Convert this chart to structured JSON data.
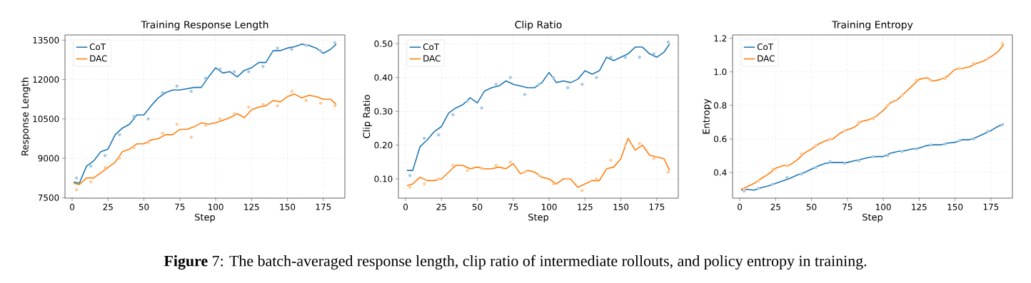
{
  "chart_data": [
    {
      "type": "line",
      "title": "Training Response Length",
      "xlabel": "Step",
      "ylabel": "Response Length",
      "xlim": [
        -5,
        190
      ],
      "ylim": [
        7480,
        13700
      ],
      "xticks": [
        0,
        25,
        50,
        75,
        100,
        125,
        150,
        175
      ],
      "yticks": [
        7500,
        9000,
        10500,
        12000,
        13500
      ],
      "grid": true,
      "legend": "top left",
      "annotations": [
        "**Figure** 7: The batch-averaged response length, clip ratio of intermediate rollouts, and policy entropy in training."
      ],
      "series": [
        {
          "type": "scatter",
          "marker": "circle",
          "color": "#a5c8e1",
          "x": [
            3,
            13,
            23,
            33,
            43,
            53,
            63,
            73,
            83,
            93,
            103,
            113,
            123,
            133,
            143,
            153,
            163,
            173,
            183
          ],
          "values": [
            8250,
            8700,
            9100,
            9900,
            10600,
            10500,
            11500,
            11750,
            11550,
            12050,
            12400,
            12300,
            12300,
            12500,
            13200,
            13150,
            13300,
            13100,
            13400
          ]
        },
        {
          "type": "scatter",
          "marker": "circle",
          "color": "#ffc999",
          "x": [
            3,
            13,
            23,
            33,
            43,
            53,
            63,
            73,
            83,
            93,
            103,
            113,
            123,
            133,
            143,
            153,
            163,
            173,
            183
          ],
          "values": [
            7800,
            8100,
            8650,
            9000,
            9400,
            9600,
            9950,
            10300,
            9800,
            10250,
            10500,
            10700,
            10950,
            11050,
            11000,
            11550,
            11200,
            11100,
            11000
          ]
        },
        {
          "type": "line",
          "marker": "none",
          "name": "CoT",
          "color": "#1f77b4",
          "x": [
            1,
            5,
            10,
            15,
            20,
            25,
            30,
            35,
            40,
            45,
            50,
            55,
            60,
            65,
            70,
            75,
            80,
            85,
            90,
            95,
            100,
            105,
            110,
            115,
            120,
            125,
            130,
            135,
            140,
            145,
            150,
            155,
            160,
            165,
            170,
            175,
            180,
            184
          ],
          "values": [
            8100,
            8050,
            8700,
            8900,
            9250,
            9350,
            9900,
            10150,
            10300,
            10650,
            10650,
            11000,
            11300,
            11500,
            11600,
            11600,
            11650,
            11700,
            11700,
            12100,
            12450,
            12250,
            12300,
            12100,
            12350,
            12450,
            12650,
            12650,
            13100,
            13100,
            13200,
            13250,
            13350,
            13300,
            13200,
            13000,
            13150,
            13350
          ]
        },
        {
          "type": "line",
          "marker": "none",
          "name": "DAC",
          "color": "#ff7f0e",
          "x": [
            1,
            5,
            10,
            15,
            20,
            25,
            30,
            35,
            40,
            45,
            50,
            55,
            60,
            65,
            70,
            75,
            80,
            85,
            90,
            95,
            100,
            105,
            110,
            115,
            120,
            125,
            130,
            135,
            140,
            145,
            150,
            155,
            160,
            165,
            170,
            175,
            180,
            184
          ],
          "values": [
            8050,
            8000,
            8250,
            8250,
            8450,
            8650,
            8850,
            9250,
            9350,
            9550,
            9550,
            9700,
            9750,
            9900,
            9900,
            10100,
            10100,
            10200,
            10350,
            10300,
            10350,
            10450,
            10550,
            10700,
            10550,
            10850,
            10950,
            11000,
            11200,
            11150,
            11350,
            11450,
            11300,
            11400,
            11350,
            11250,
            11250,
            11050
          ]
        }
      ]
    },
    {
      "type": "line",
      "title": "Clip Ratio",
      "xlabel": "Step",
      "ylabel": "Clip Ratio",
      "xlim": [
        -5,
        190
      ],
      "ylim": [
        0.043,
        0.526
      ],
      "xticks": [
        0,
        25,
        50,
        75,
        100,
        125,
        150,
        175
      ],
      "yticks": [
        {
          "value": 0.1,
          "label": "0.10"
        },
        {
          "value": 0.2,
          "label": "0.20"
        },
        {
          "value": 0.3,
          "label": "0.30"
        },
        {
          "value": 0.4,
          "label": "0.40"
        },
        {
          "value": 0.5,
          "label": "0.50"
        }
      ],
      "grid": true,
      "legend": "top left",
      "series": [
        {
          "type": "scatter",
          "marker": "circle",
          "color": "#a5c8e1",
          "x": [
            3,
            13,
            23,
            33,
            43,
            53,
            63,
            73,
            83,
            93,
            103,
            113,
            123,
            133,
            143,
            153,
            163,
            173,
            183
          ],
          "values": [
            0.11,
            0.22,
            0.23,
            0.29,
            0.33,
            0.31,
            0.38,
            0.4,
            0.35,
            0.38,
            0.4,
            0.37,
            0.38,
            0.4,
            0.46,
            0.46,
            0.46,
            0.47,
            0.505
          ]
        },
        {
          "type": "scatter",
          "marker": "circle",
          "color": "#ffc999",
          "x": [
            3,
            13,
            23,
            33,
            43,
            53,
            63,
            73,
            83,
            93,
            103,
            113,
            123,
            133,
            143,
            153,
            163,
            173,
            183
          ],
          "values": [
            0.075,
            0.085,
            0.1,
            0.14,
            0.125,
            0.13,
            0.14,
            0.15,
            0.12,
            0.11,
            0.085,
            0.1,
            0.065,
            0.1,
            0.155,
            0.2,
            0.205,
            0.16,
            0.12
          ]
        },
        {
          "type": "line",
          "marker": "none",
          "name": "CoT",
          "color": "#1f77b4",
          "x": [
            1,
            5,
            10,
            15,
            20,
            25,
            30,
            35,
            40,
            45,
            50,
            55,
            60,
            65,
            70,
            75,
            80,
            85,
            90,
            95,
            100,
            105,
            110,
            115,
            120,
            125,
            130,
            135,
            140,
            145,
            150,
            155,
            160,
            165,
            170,
            175,
            180,
            184
          ],
          "values": [
            0.125,
            0.125,
            0.195,
            0.215,
            0.24,
            0.255,
            0.295,
            0.31,
            0.32,
            0.34,
            0.325,
            0.36,
            0.37,
            0.375,
            0.39,
            0.38,
            0.375,
            0.37,
            0.37,
            0.385,
            0.415,
            0.385,
            0.39,
            0.385,
            0.395,
            0.42,
            0.41,
            0.42,
            0.46,
            0.45,
            0.46,
            0.47,
            0.49,
            0.49,
            0.47,
            0.46,
            0.475,
            0.5
          ]
        },
        {
          "type": "line",
          "marker": "none",
          "name": "DAC",
          "color": "#ff7f0e",
          "x": [
            1,
            5,
            10,
            15,
            20,
            25,
            30,
            35,
            40,
            45,
            50,
            55,
            60,
            65,
            70,
            75,
            80,
            85,
            90,
            95,
            100,
            105,
            110,
            115,
            120,
            125,
            130,
            135,
            140,
            145,
            150,
            155,
            160,
            165,
            170,
            175,
            180,
            184
          ],
          "values": [
            0.08,
            0.085,
            0.105,
            0.095,
            0.095,
            0.1,
            0.12,
            0.14,
            0.14,
            0.13,
            0.135,
            0.13,
            0.13,
            0.135,
            0.13,
            0.145,
            0.115,
            0.125,
            0.12,
            0.105,
            0.1,
            0.085,
            0.1,
            0.1,
            0.075,
            0.085,
            0.095,
            0.095,
            0.13,
            0.135,
            0.16,
            0.22,
            0.185,
            0.2,
            0.17,
            0.165,
            0.16,
            0.125
          ]
        }
      ]
    },
    {
      "type": "line",
      "title": "Training Entropy",
      "xlabel": "Step",
      "ylabel": "Entropy",
      "xlim": [
        -5,
        190
      ],
      "ylim": [
        0.247,
        1.22
      ],
      "xticks": [
        0,
        25,
        50,
        75,
        100,
        125,
        150,
        175
      ],
      "yticks": [
        0.4,
        0.6,
        0.8,
        {
          "value": 1.0,
          "label": "1.0"
        },
        1.2
      ],
      "grid": true,
      "legend": "top left",
      "series": [
        {
          "type": "scatter",
          "marker": "circle",
          "color": "#a5c8e1",
          "x": [
            3,
            13,
            23,
            33,
            43,
            53,
            63,
            73,
            83,
            93,
            103,
            113,
            123,
            133,
            143,
            153,
            163,
            173,
            183
          ],
          "values": [
            0.29,
            0.305,
            0.33,
            0.37,
            0.39,
            0.43,
            0.465,
            0.455,
            0.47,
            0.495,
            0.5,
            0.525,
            0.54,
            0.565,
            0.57,
            0.59,
            0.6,
            0.645,
            0.685
          ]
        },
        {
          "type": "scatter",
          "marker": "circle",
          "color": "#ffc999",
          "x": [
            3,
            13,
            23,
            33,
            43,
            53,
            63,
            73,
            83,
            93,
            103,
            113,
            123,
            133,
            143,
            153,
            163,
            173,
            183
          ],
          "values": [
            0.3,
            0.35,
            0.42,
            0.44,
            0.51,
            0.56,
            0.6,
            0.65,
            0.7,
            0.72,
            0.8,
            0.86,
            0.95,
            0.95,
            0.96,
            1.02,
            1.05,
            1.08,
            1.17
          ]
        },
        {
          "type": "line",
          "marker": "none",
          "name": "CoT",
          "color": "#1f77b4",
          "x": [
            1,
            5,
            10,
            15,
            20,
            25,
            30,
            35,
            40,
            45,
            50,
            55,
            60,
            65,
            70,
            75,
            80,
            85,
            90,
            95,
            100,
            105,
            110,
            115,
            120,
            125,
            130,
            135,
            140,
            145,
            150,
            155,
            160,
            165,
            170,
            175,
            180,
            184
          ],
          "values": [
            0.295,
            0.3,
            0.295,
            0.31,
            0.32,
            0.335,
            0.35,
            0.365,
            0.385,
            0.4,
            0.42,
            0.44,
            0.455,
            0.46,
            0.46,
            0.46,
            0.47,
            0.48,
            0.49,
            0.495,
            0.495,
            0.515,
            0.525,
            0.53,
            0.54,
            0.545,
            0.56,
            0.565,
            0.565,
            0.575,
            0.58,
            0.595,
            0.595,
            0.61,
            0.63,
            0.65,
            0.675,
            0.69
          ]
        },
        {
          "type": "line",
          "marker": "none",
          "name": "DAC",
          "color": "#ff7f0e",
          "x": [
            1,
            5,
            10,
            15,
            20,
            25,
            30,
            35,
            40,
            45,
            50,
            55,
            60,
            65,
            70,
            75,
            80,
            85,
            90,
            95,
            100,
            105,
            110,
            115,
            120,
            125,
            130,
            135,
            140,
            145,
            150,
            155,
            160,
            165,
            170,
            175,
            180,
            184
          ],
          "values": [
            0.3,
            0.315,
            0.335,
            0.365,
            0.39,
            0.425,
            0.44,
            0.445,
            0.475,
            0.515,
            0.54,
            0.57,
            0.59,
            0.6,
            0.635,
            0.655,
            0.67,
            0.705,
            0.715,
            0.735,
            0.77,
            0.815,
            0.835,
            0.875,
            0.915,
            0.955,
            0.965,
            0.945,
            0.955,
            0.975,
            1.015,
            1.02,
            1.03,
            1.05,
            1.065,
            1.09,
            1.12,
            1.165
          ]
        }
      ]
    }
  ]
}
